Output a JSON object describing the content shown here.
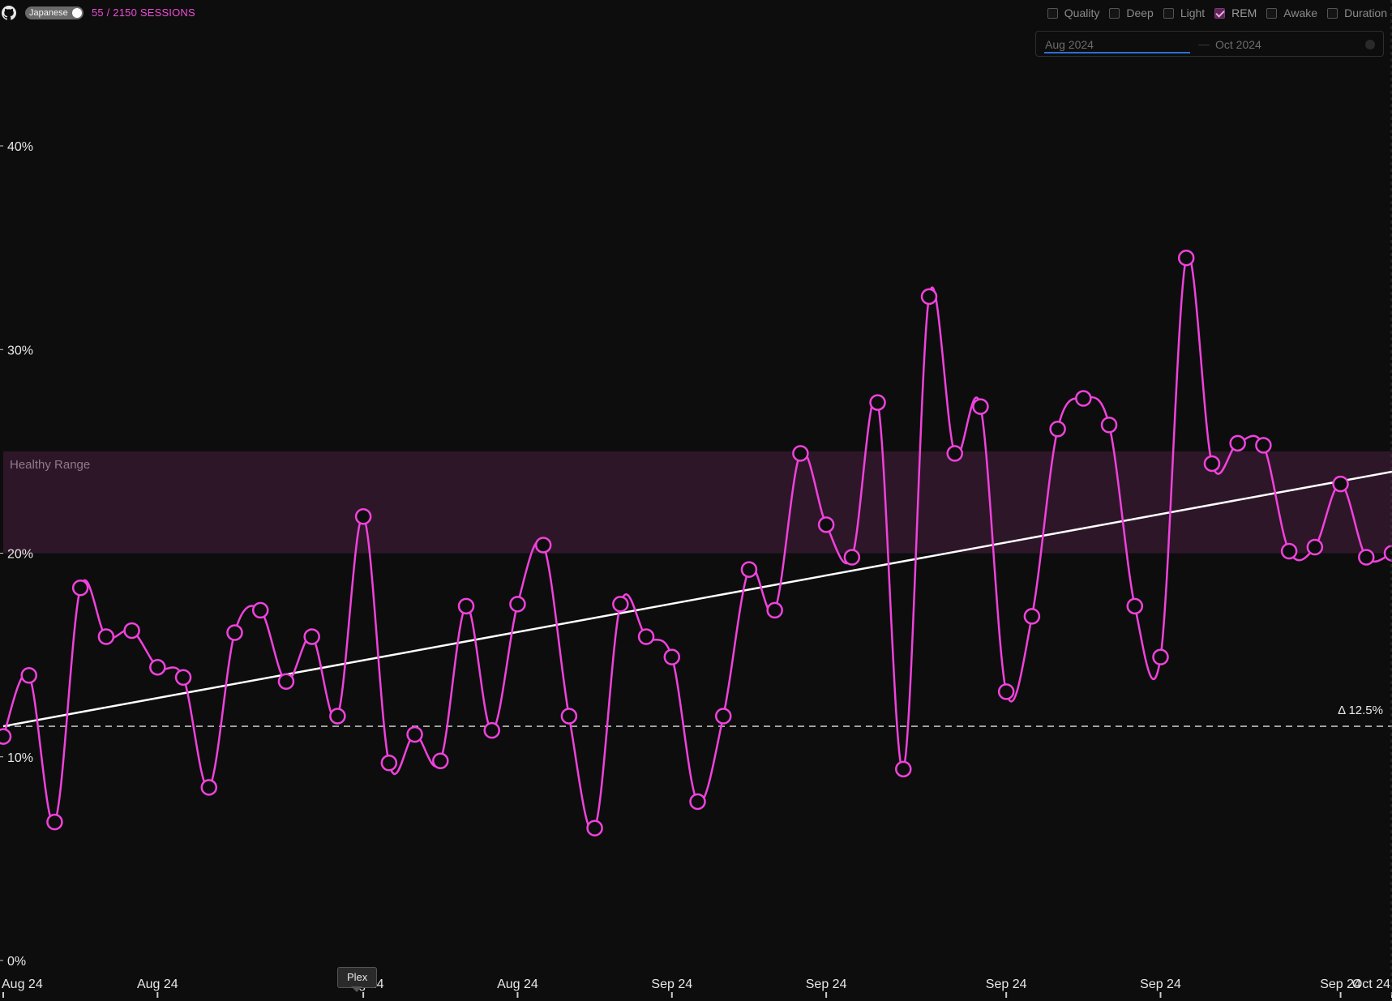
{
  "header": {
    "github_icon": "github-icon",
    "language_toggle_label": "Japanese",
    "sessions_count": "55 / 2150 SESSIONS"
  },
  "metric_toggles": [
    {
      "label": "Quality",
      "checked": false
    },
    {
      "label": "Deep",
      "checked": false
    },
    {
      "label": "Light",
      "checked": false
    },
    {
      "label": "REM",
      "checked": true
    },
    {
      "label": "Awake",
      "checked": false
    },
    {
      "label": "Duration",
      "checked": false
    }
  ],
  "date_range": {
    "start": "Aug 2024",
    "end": "Oct 2024"
  },
  "tooltip": {
    "label": "Plex"
  },
  "colors": {
    "series": "#f042dc",
    "trend": "#ffffff",
    "band": "#2e1629",
    "background": "#0d0d0d"
  },
  "chart_data": {
    "type": "line",
    "ylim": [
      0,
      40
    ],
    "ytick_labels": [
      "0%",
      "10%",
      "20%",
      "30%",
      "40%"
    ],
    "xtick_labels": [
      "Aug 24",
      "Aug 24",
      "Aug 24",
      "Aug 24",
      "Sep 24",
      "Sep 24",
      "Sep 24",
      "Sep 24",
      "Sep 24",
      "Oct 24"
    ],
    "band": {
      "label": "Healthy Range",
      "y0": 20,
      "y1": 25
    },
    "baseline": {
      "y": 11.5,
      "label": "Δ 12.5%"
    },
    "trend": {
      "y_start": 11.5,
      "y_end": 24
    },
    "series": [
      {
        "values": [
          11.0,
          14.0,
          6.8,
          18.3,
          15.9,
          16.2,
          14.4,
          13.9,
          8.5,
          16.1,
          17.2,
          13.7,
          15.9,
          12.0,
          21.8,
          9.7,
          11.1,
          9.8,
          17.4,
          11.3,
          17.5,
          20.4,
          12.0,
          6.5,
          17.5,
          15.9,
          14.9,
          7.8,
          12.0,
          19.2,
          17.2,
          24.9,
          21.4,
          19.8,
          27.4,
          9.4,
          32.6,
          24.9,
          27.2,
          13.2,
          16.9,
          26.1,
          27.6,
          26.3,
          17.4,
          14.9,
          34.5,
          24.4,
          25.4,
          25.3,
          20.1,
          20.3,
          23.4,
          19.8,
          20.0
        ]
      }
    ]
  }
}
